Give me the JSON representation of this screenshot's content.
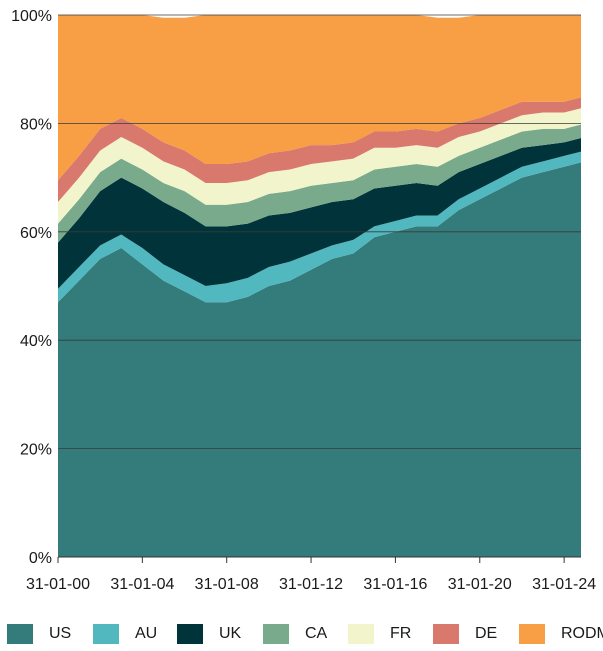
{
  "chart_data": {
    "type": "area",
    "stacked": true,
    "normalized": true,
    "title": "",
    "xlabel": "",
    "ylabel": "",
    "ylim": [
      0,
      100
    ],
    "yticks": [
      "0%",
      "20%",
      "40%",
      "60%",
      "80%",
      "100%"
    ],
    "xticks": [
      "31-01-00",
      "31-01-04",
      "31-01-08",
      "31-01-12",
      "31-01-16",
      "31-01-20",
      "31-01-24"
    ],
    "x": [
      2000,
      2001,
      2002,
      2003,
      2004,
      2005,
      2006,
      2007,
      2008,
      2009,
      2010,
      2011,
      2012,
      2013,
      2014,
      2015,
      2016,
      2017,
      2018,
      2019,
      2020,
      2021,
      2022,
      2023,
      2024,
      2025
    ],
    "x_range": [
      2000,
      2024.8
    ],
    "grid": "horizontal",
    "legend_position": "bottom",
    "series": [
      {
        "name": "US",
        "color": "#347b7b",
        "values": [
          47,
          51,
          55,
          57,
          54,
          51,
          49,
          47,
          47,
          48,
          50,
          51,
          53,
          55,
          56,
          59,
          60,
          61,
          61,
          64,
          66,
          68,
          70,
          71,
          72,
          73
        ]
      },
      {
        "name": "AU",
        "color": "#52b8bf",
        "values": [
          2.5,
          2.5,
          2.5,
          2.5,
          3,
          3,
          3,
          3,
          3.5,
          3.5,
          3.5,
          3.5,
          3,
          2.5,
          2.5,
          2,
          2,
          2,
          2,
          2,
          2,
          2,
          2,
          2,
          2,
          2
        ]
      },
      {
        "name": "UK",
        "color": "#00343a",
        "values": [
          8.5,
          9,
          10,
          10.5,
          11,
          11.5,
          11.5,
          11,
          10.5,
          10,
          9.5,
          9,
          8.5,
          8,
          7.5,
          7,
          6.5,
          6,
          5.5,
          5,
          4.5,
          4,
          3.5,
          3,
          2.5,
          2.5
        ]
      },
      {
        "name": "CA",
        "color": "#7aaa8c",
        "values": [
          3.5,
          3.5,
          3.5,
          3.5,
          3.5,
          3.5,
          4,
          4,
          4,
          4,
          4,
          4,
          4,
          3.5,
          3.5,
          3.5,
          3.5,
          3.5,
          3.5,
          3,
          3,
          3,
          3,
          3,
          2.5,
          2.5
        ]
      },
      {
        "name": "FR",
        "color": "#f2f4cc",
        "values": [
          4,
          4,
          4,
          4,
          4,
          4,
          4,
          4,
          4,
          4,
          4,
          4,
          4,
          4,
          4,
          4,
          3.5,
          3.5,
          3.5,
          3.5,
          3,
          3,
          3,
          3,
          3,
          3
        ]
      },
      {
        "name": "DE",
        "color": "#d9796e",
        "values": [
          4,
          4,
          4,
          3.5,
          3.5,
          3.5,
          3.5,
          3.5,
          3.5,
          3.5,
          3.5,
          3.5,
          3.5,
          3,
          3,
          3,
          3,
          3,
          3,
          2.5,
          2.5,
          2.5,
          2.5,
          2,
          2,
          2
        ]
      },
      {
        "name": "RODM",
        "color": "#f89e44",
        "values": [
          30.5,
          26,
          21,
          19,
          21,
          23,
          24.5,
          27.5,
          27.5,
          27,
          25.5,
          25,
          24,
          24,
          23.5,
          21.5,
          21.5,
          21,
          21,
          19.5,
          19,
          17.5,
          16,
          16,
          16,
          15
        ]
      }
    ]
  }
}
